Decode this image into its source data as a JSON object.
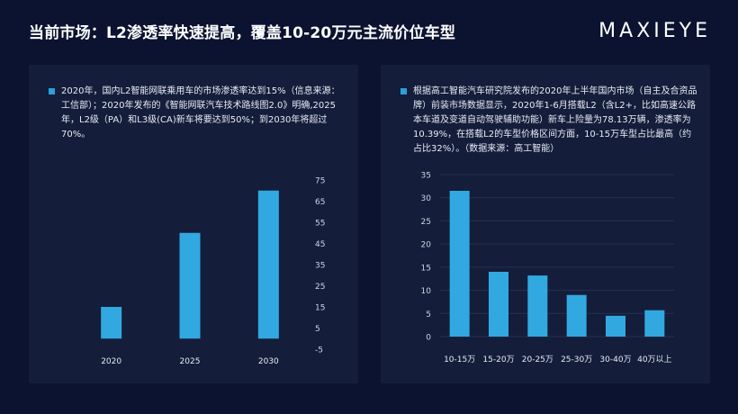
{
  "page": {
    "title": "当前市场：L2渗透率快速提高，覆盖10-20万元主流价位车型",
    "logo": "MAXIEYE"
  },
  "colors": {
    "background": "#0b1330",
    "panel": "#141d3a",
    "bar": "#32a8e0",
    "bullet": "#2b9fe0"
  },
  "left_panel": {
    "note": "2020年，国内L2智能网联乘用车的市场渗透率达到15%（信息来源：工信部）；2020年发布的《智能网联汽车技术路线图2.0》明确,2025年，L2级（PA）和L3级(CA)新车将要达到50%；到2030年将超过70%。"
  },
  "right_panel": {
    "note": "根据高工智能汽车研究院发布的2020年上半年国内市场（自主及合资品牌）前装市场数据显示，2020年1-6月搭载L2（含L2+，比如高速公路本车道及变道自动驾驶辅助功能）新车上险量为78.13万辆，渗透率为10.39%，在搭载L2的车型价格区间方面，10-15万车型占比最高（约占比32%）。（数据来源：高工智能）"
  },
  "chart_data": [
    {
      "type": "bar",
      "categories": [
        "2020",
        "2025",
        "2030"
      ],
      "values": [
        15,
        50,
        70
      ],
      "ylim": [
        -5,
        75
      ],
      "yticks": [
        -5,
        5,
        15,
        25,
        35,
        45,
        55,
        65,
        75
      ],
      "y_axis_side": "right",
      "grid": false,
      "title": "",
      "xlabel": "",
      "ylabel": ""
    },
    {
      "type": "bar",
      "categories": [
        "10-15万",
        "15-20万",
        "20-25万",
        "25-30万",
        "30-40万",
        "40万以上"
      ],
      "values": [
        31.5,
        14,
        13.2,
        9,
        4.5,
        5.7
      ],
      "ylim": [
        0,
        35
      ],
      "yticks": [
        0,
        5,
        10,
        15,
        20,
        25,
        30,
        35
      ],
      "y_axis_side": "left",
      "grid": true,
      "title": "",
      "xlabel": "",
      "ylabel": ""
    }
  ]
}
